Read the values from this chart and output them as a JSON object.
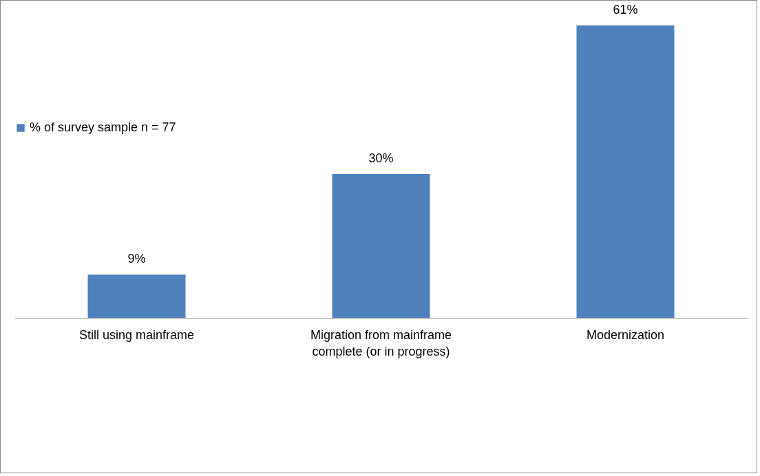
{
  "chart_data": {
    "type": "bar",
    "categories": [
      "Still using mainframe",
      "Migration from mainframe complete (or in progress)",
      "Modernization"
    ],
    "series": [
      {
        "name": "% of survey sample    n = 77",
        "color": "#4f81bd",
        "values": [
          9,
          30,
          61
        ],
        "value_labels": [
          "9%",
          "30%",
          "61%"
        ]
      }
    ],
    "legend": "left",
    "grid": false
  }
}
